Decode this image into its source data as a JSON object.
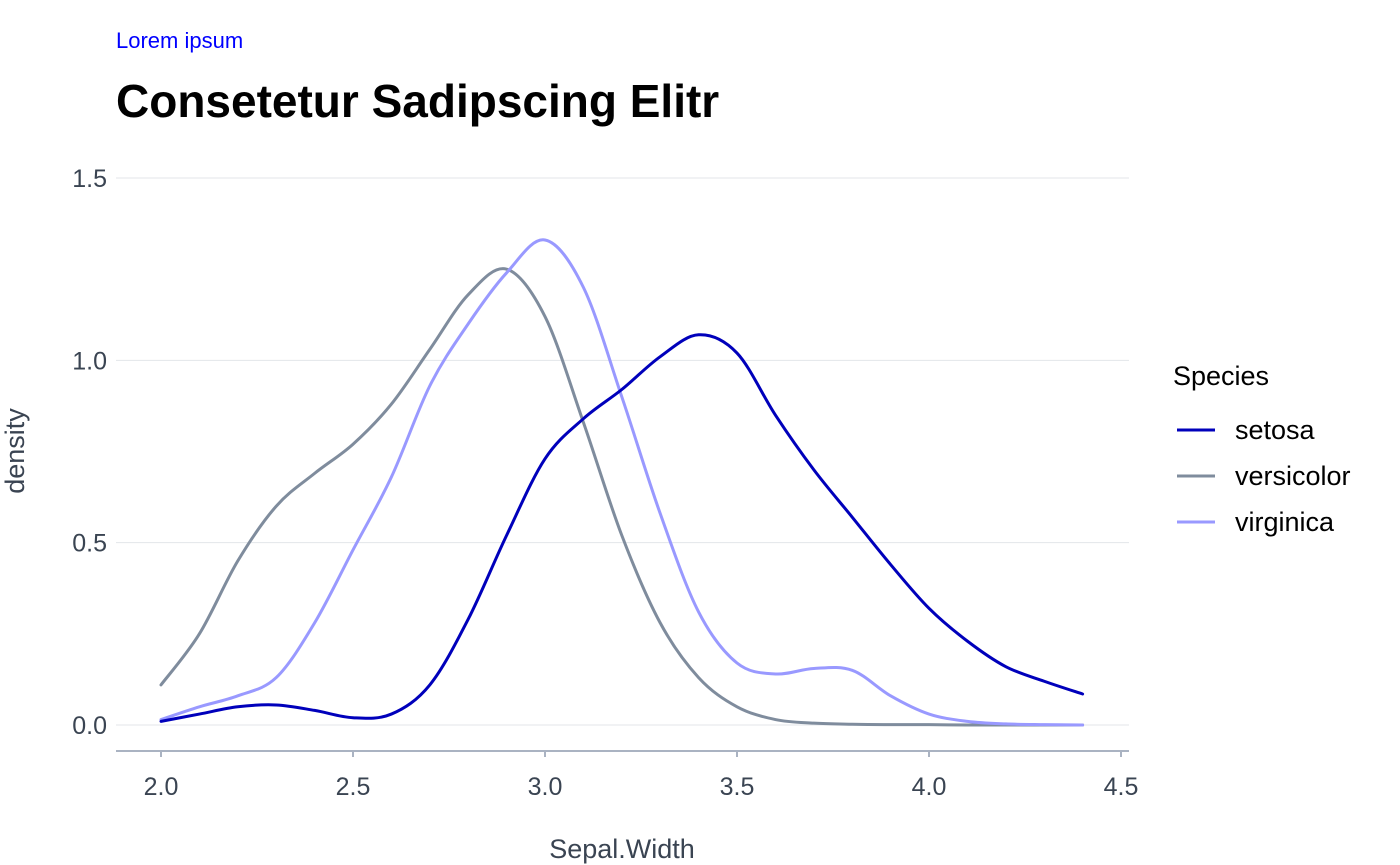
{
  "header": {
    "caption": "Lorem ipsum",
    "title": "Consetetur Sadipscing Elitr"
  },
  "chart_data": {
    "type": "line",
    "title": "Consetetur Sadipscing Elitr",
    "subtitle": "Lorem ipsum",
    "xlabel": "Sepal.Width",
    "ylabel": "density",
    "xlim": [
      2.0,
      4.4
    ],
    "ylim": [
      0.0,
      1.5
    ],
    "x_ticks": [
      "2.0",
      "2.5",
      "3.0",
      "3.5",
      "4.0",
      "4.5"
    ],
    "x_tick_values": [
      2.0,
      2.5,
      3.0,
      3.5,
      4.0,
      4.5
    ],
    "y_ticks": [
      "0.0",
      "0.5",
      "1.0",
      "1.5"
    ],
    "y_tick_values": [
      0.0,
      0.5,
      1.0,
      1.5
    ],
    "grid": "horizontal",
    "legend_title": "Species",
    "legend_position": "right",
    "series": [
      {
        "name": "setosa",
        "color": "#0000bb",
        "x": [
          2.0,
          2.1,
          2.2,
          2.3,
          2.4,
          2.5,
          2.6,
          2.7,
          2.8,
          2.9,
          3.0,
          3.1,
          3.2,
          3.3,
          3.4,
          3.5,
          3.6,
          3.7,
          3.8,
          3.9,
          4.0,
          4.1,
          4.2,
          4.3,
          4.4
        ],
        "values": [
          0.01,
          0.03,
          0.05,
          0.055,
          0.04,
          0.02,
          0.03,
          0.11,
          0.29,
          0.52,
          0.73,
          0.84,
          0.92,
          1.01,
          1.07,
          1.02,
          0.85,
          0.7,
          0.57,
          0.44,
          0.32,
          0.23,
          0.16,
          0.12,
          0.085
        ]
      },
      {
        "name": "versicolor",
        "color": "#7f8c9d",
        "x": [
          2.0,
          2.1,
          2.2,
          2.3,
          2.4,
          2.5,
          2.6,
          2.7,
          2.8,
          2.9,
          3.0,
          3.1,
          3.2,
          3.3,
          3.4,
          3.5,
          3.6,
          3.7,
          3.8,
          3.9,
          4.0,
          4.1,
          4.2,
          4.3,
          4.4
        ],
        "values": [
          0.11,
          0.25,
          0.45,
          0.6,
          0.69,
          0.77,
          0.88,
          1.03,
          1.18,
          1.25,
          1.12,
          0.83,
          0.52,
          0.28,
          0.13,
          0.05,
          0.015,
          0.005,
          0.002,
          0.001,
          0.001,
          0.0,
          0.0,
          0.0,
          0.0
        ]
      },
      {
        "name": "virginica",
        "color": "#9999ff",
        "x": [
          2.0,
          2.1,
          2.2,
          2.3,
          2.4,
          2.5,
          2.6,
          2.7,
          2.8,
          2.9,
          3.0,
          3.1,
          3.2,
          3.3,
          3.4,
          3.5,
          3.6,
          3.7,
          3.8,
          3.9,
          4.0,
          4.1,
          4.2,
          4.3,
          4.4
        ],
        "values": [
          0.015,
          0.05,
          0.08,
          0.13,
          0.28,
          0.48,
          0.68,
          0.93,
          1.1,
          1.24,
          1.33,
          1.2,
          0.9,
          0.58,
          0.31,
          0.17,
          0.14,
          0.155,
          0.15,
          0.08,
          0.03,
          0.01,
          0.003,
          0.001,
          0.0
        ]
      }
    ]
  }
}
